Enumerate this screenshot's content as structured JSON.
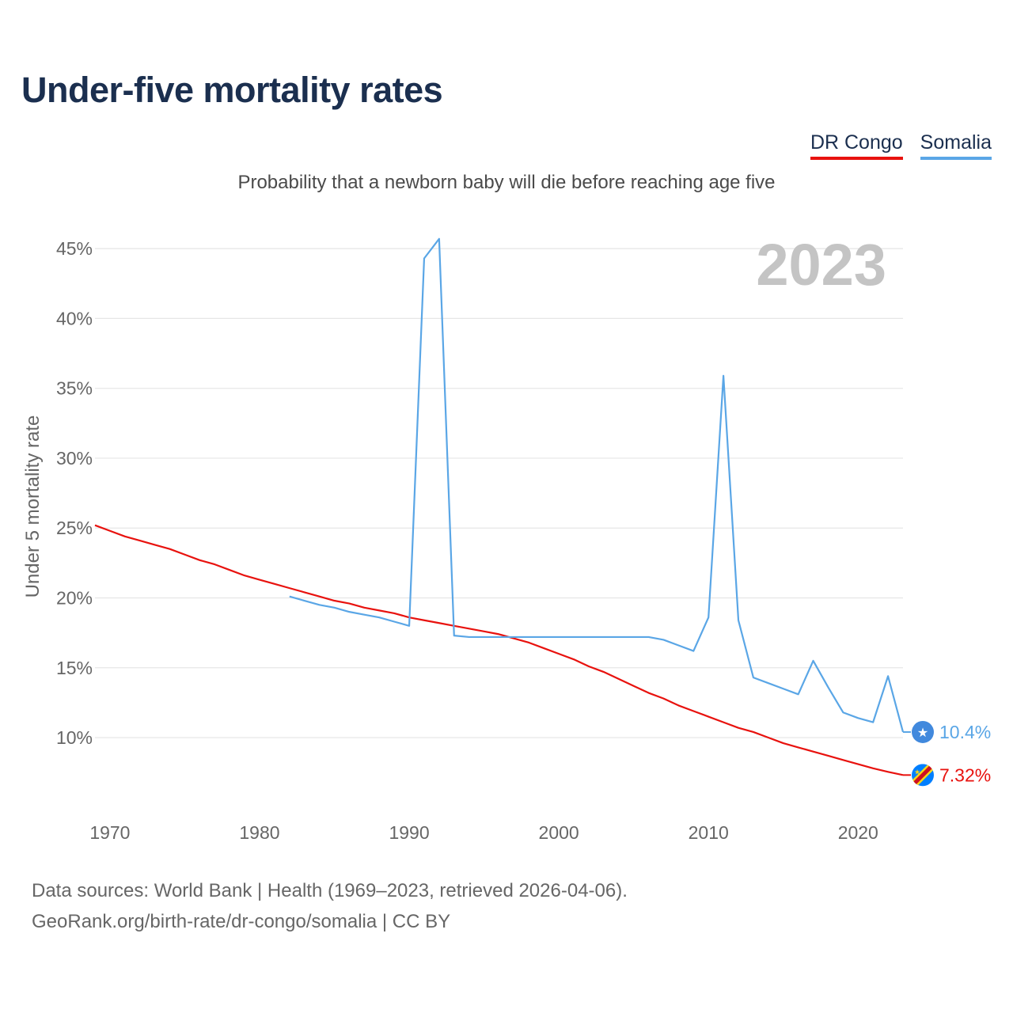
{
  "title": "Under-five mortality rates",
  "subtitle": "Probability that a newborn baby will die before reaching age five",
  "legend": [
    "DR Congo",
    "Somalia"
  ],
  "sources": {
    "line1": "Data sources: World Bank | Health (1969–2023, retrieved 2026-04-06).",
    "line2": "GeoRank.org/birth-rate/dr-congo/somalia | CC BY"
  },
  "colors": {
    "congo": "#e8120e",
    "somalia": "#5aa6e6",
    "grid": "#e6e6e6"
  },
  "chart_data": {
    "type": "line",
    "title": "Under-five mortality rates",
    "ylabel": "Under 5 mortality rate",
    "xlabel": "",
    "year_badge": "2023",
    "xlim": [
      1969,
      2023
    ],
    "ylim": [
      5.3,
      47.5
    ],
    "x_ticks": [
      1970,
      1980,
      1990,
      2000,
      2010,
      2020
    ],
    "y_ticks": [
      10,
      15,
      20,
      25,
      30,
      35,
      40,
      45
    ],
    "y_tick_labels": [
      "10%",
      "15%",
      "20%",
      "25%",
      "30%",
      "35%",
      "40%",
      "45%"
    ],
    "series": [
      {
        "name": "DR Congo",
        "color": "#e8120e",
        "x": [
          1969,
          1970,
          1971,
          1972,
          1973,
          1974,
          1975,
          1976,
          1977,
          1978,
          1979,
          1980,
          1981,
          1982,
          1983,
          1984,
          1985,
          1986,
          1987,
          1988,
          1989,
          1990,
          1991,
          1992,
          1993,
          1994,
          1995,
          1996,
          1997,
          1998,
          1999,
          2000,
          2001,
          2002,
          2003,
          2004,
          2005,
          2006,
          2007,
          2008,
          2009,
          2010,
          2011,
          2012,
          2013,
          2014,
          2015,
          2016,
          2017,
          2018,
          2019,
          2020,
          2021,
          2022,
          2023
        ],
        "values": [
          25.2,
          24.8,
          24.4,
          24.1,
          23.8,
          23.5,
          23.1,
          22.7,
          22.4,
          22.0,
          21.6,
          21.3,
          21.0,
          20.7,
          20.4,
          20.1,
          19.8,
          19.6,
          19.3,
          19.1,
          18.9,
          18.6,
          18.4,
          18.2,
          18.0,
          17.8,
          17.6,
          17.4,
          17.1,
          16.8,
          16.4,
          16.0,
          15.6,
          15.1,
          14.7,
          14.2,
          13.7,
          13.2,
          12.8,
          12.3,
          11.9,
          11.5,
          11.1,
          10.7,
          10.4,
          10.0,
          9.6,
          9.3,
          9.0,
          8.7,
          8.4,
          8.1,
          7.8,
          7.55,
          7.32
        ],
        "end_label": "7.32%"
      },
      {
        "name": "Somalia",
        "color": "#5aa6e6",
        "x": [
          1982,
          1983,
          1984,
          1985,
          1986,
          1987,
          1988,
          1989,
          1990,
          1991,
          1992,
          1993,
          1994,
          1995,
          1996,
          1997,
          1998,
          1999,
          2000,
          2001,
          2002,
          2003,
          2004,
          2005,
          2006,
          2007,
          2008,
          2009,
          2010,
          2011,
          2012,
          2013,
          2014,
          2015,
          2016,
          2017,
          2018,
          2019,
          2020,
          2021,
          2022,
          2023
        ],
        "values": [
          20.1,
          19.8,
          19.5,
          19.3,
          19.0,
          18.8,
          18.6,
          18.3,
          18.0,
          44.3,
          45.7,
          17.3,
          17.2,
          17.2,
          17.2,
          17.2,
          17.2,
          17.2,
          17.2,
          17.2,
          17.2,
          17.2,
          17.2,
          17.2,
          17.2,
          17.0,
          16.6,
          16.2,
          18.6,
          35.9,
          18.4,
          14.3,
          13.9,
          13.5,
          13.1,
          15.5,
          13.6,
          11.8,
          11.4,
          11.1,
          14.4,
          10.4
        ],
        "end_label": "10.4%"
      }
    ]
  }
}
